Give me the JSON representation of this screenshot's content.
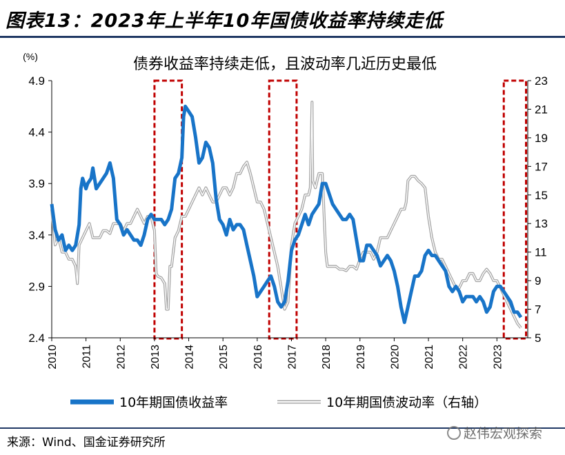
{
  "figure_title": "图表13：2023年上半年10年国债收益率持续走低",
  "source": "来源：Wind、国金证券研究所",
  "watermark": "赵伟宏观探索",
  "colors": {
    "yield": "#1874c8",
    "volatility": "#a6a6a6",
    "highlight": "#c00000",
    "rule": "#1f3864"
  },
  "chart_data": {
    "type": "line",
    "title": "债券收益率持续走低，且波动率几近历史最低",
    "left_axis_unit": "(%)",
    "y_left": {
      "lim": [
        2.4,
        4.9
      ],
      "ticks": [
        "2.4",
        "2.9",
        "3.4",
        "3.9",
        "4.4",
        "4.9"
      ]
    },
    "y_right": {
      "lim": [
        5,
        23
      ],
      "ticks": [
        "5",
        "7",
        "9",
        "11",
        "13",
        "15",
        "17",
        "19",
        "21",
        "23"
      ]
    },
    "x_lim": [
      2010,
      2023.9
    ],
    "x_ticks": [
      "2010",
      "2011",
      "2012",
      "2013",
      "2014",
      "2015",
      "2016",
      "2017",
      "2018",
      "2019",
      "2020",
      "2021",
      "2022",
      "2023"
    ],
    "grid": false,
    "legend_position": "bottom",
    "highlight_ranges": [
      [
        2013.0,
        2013.8
      ],
      [
        2016.35,
        2017.15
      ],
      [
        2023.2,
        2023.85
      ]
    ],
    "series": [
      {
        "name": "10年期国债收益率",
        "axis": "left",
        "points": [
          [
            2010.0,
            3.7
          ],
          [
            2010.1,
            3.45
          ],
          [
            2010.2,
            3.35
          ],
          [
            2010.3,
            3.4
          ],
          [
            2010.4,
            3.25
          ],
          [
            2010.5,
            3.3
          ],
          [
            2010.6,
            3.25
          ],
          [
            2010.7,
            3.3
          ],
          [
            2010.8,
            3.5
          ],
          [
            2010.85,
            3.85
          ],
          [
            2010.9,
            3.95
          ],
          [
            2011.0,
            3.85
          ],
          [
            2011.05,
            3.9
          ],
          [
            2011.15,
            3.95
          ],
          [
            2011.2,
            4.05
          ],
          [
            2011.3,
            3.85
          ],
          [
            2011.4,
            3.9
          ],
          [
            2011.5,
            3.95
          ],
          [
            2011.6,
            4.0
          ],
          [
            2011.7,
            4.1
          ],
          [
            2011.8,
            3.95
          ],
          [
            2011.9,
            3.55
          ],
          [
            2012.0,
            3.5
          ],
          [
            2012.1,
            3.4
          ],
          [
            2012.2,
            3.45
          ],
          [
            2012.3,
            3.4
          ],
          [
            2012.4,
            3.35
          ],
          [
            2012.5,
            3.35
          ],
          [
            2012.6,
            3.3
          ],
          [
            2012.7,
            3.4
          ],
          [
            2012.8,
            3.55
          ],
          [
            2012.9,
            3.6
          ],
          [
            2013.0,
            3.55
          ],
          [
            2013.2,
            3.55
          ],
          [
            2013.3,
            3.5
          ],
          [
            2013.4,
            3.55
          ],
          [
            2013.5,
            3.65
          ],
          [
            2013.6,
            3.95
          ],
          [
            2013.7,
            4.0
          ],
          [
            2013.8,
            4.15
          ],
          [
            2013.85,
            4.55
          ],
          [
            2013.9,
            4.65
          ],
          [
            2014.0,
            4.6
          ],
          [
            2014.1,
            4.55
          ],
          [
            2014.2,
            4.35
          ],
          [
            2014.3,
            4.1
          ],
          [
            2014.4,
            4.15
          ],
          [
            2014.5,
            4.3
          ],
          [
            2014.6,
            4.25
          ],
          [
            2014.7,
            4.1
          ],
          [
            2014.8,
            3.75
          ],
          [
            2014.9,
            3.55
          ],
          [
            2015.0,
            3.5
          ],
          [
            2015.1,
            3.4
          ],
          [
            2015.2,
            3.55
          ],
          [
            2015.3,
            3.45
          ],
          [
            2015.4,
            3.5
          ],
          [
            2015.5,
            3.5
          ],
          [
            2015.6,
            3.45
          ],
          [
            2015.7,
            3.3
          ],
          [
            2015.8,
            3.15
          ],
          [
            2015.9,
            3.0
          ],
          [
            2016.0,
            2.8
          ],
          [
            2016.1,
            2.85
          ],
          [
            2016.2,
            2.9
          ],
          [
            2016.3,
            2.95
          ],
          [
            2016.4,
            3.0
          ],
          [
            2016.5,
            2.9
          ],
          [
            2016.6,
            2.75
          ],
          [
            2016.7,
            2.7
          ],
          [
            2016.8,
            2.75
          ],
          [
            2016.9,
            2.95
          ],
          [
            2017.0,
            3.25
          ],
          [
            2017.1,
            3.35
          ],
          [
            2017.2,
            3.4
          ],
          [
            2017.3,
            3.5
          ],
          [
            2017.4,
            3.6
          ],
          [
            2017.5,
            3.5
          ],
          [
            2017.6,
            3.6
          ],
          [
            2017.7,
            3.65
          ],
          [
            2017.8,
            3.7
          ],
          [
            2017.9,
            3.9
          ],
          [
            2018.0,
            3.9
          ],
          [
            2018.1,
            3.8
          ],
          [
            2018.2,
            3.7
          ],
          [
            2018.3,
            3.65
          ],
          [
            2018.4,
            3.6
          ],
          [
            2018.5,
            3.55
          ],
          [
            2018.6,
            3.55
          ],
          [
            2018.7,
            3.6
          ],
          [
            2018.8,
            3.55
          ],
          [
            2018.9,
            3.35
          ],
          [
            2019.0,
            3.15
          ],
          [
            2019.1,
            3.15
          ],
          [
            2019.2,
            3.3
          ],
          [
            2019.3,
            3.3
          ],
          [
            2019.4,
            3.25
          ],
          [
            2019.5,
            3.2
          ],
          [
            2019.6,
            3.1
          ],
          [
            2019.7,
            3.15
          ],
          [
            2019.8,
            3.2
          ],
          [
            2019.9,
            3.15
          ],
          [
            2020.0,
            3.05
          ],
          [
            2020.1,
            2.9
          ],
          [
            2020.2,
            2.7
          ],
          [
            2020.3,
            2.55
          ],
          [
            2020.4,
            2.7
          ],
          [
            2020.5,
            2.85
          ],
          [
            2020.6,
            3.0
          ],
          [
            2020.7,
            3.0
          ],
          [
            2020.8,
            3.05
          ],
          [
            2020.9,
            3.2
          ],
          [
            2021.0,
            3.25
          ],
          [
            2021.1,
            3.2
          ],
          [
            2021.2,
            3.2
          ],
          [
            2021.3,
            3.15
          ],
          [
            2021.4,
            3.1
          ],
          [
            2021.5,
            3.05
          ],
          [
            2021.6,
            2.9
          ],
          [
            2021.7,
            2.85
          ],
          [
            2021.8,
            2.9
          ],
          [
            2021.9,
            2.85
          ],
          [
            2022.0,
            2.75
          ],
          [
            2022.1,
            2.8
          ],
          [
            2022.2,
            2.8
          ],
          [
            2022.3,
            2.8
          ],
          [
            2022.4,
            2.75
          ],
          [
            2022.5,
            2.8
          ],
          [
            2022.6,
            2.75
          ],
          [
            2022.7,
            2.65
          ],
          [
            2022.8,
            2.7
          ],
          [
            2022.9,
            2.85
          ],
          [
            2023.0,
            2.9
          ],
          [
            2023.1,
            2.9
          ],
          [
            2023.2,
            2.85
          ],
          [
            2023.3,
            2.8
          ],
          [
            2023.4,
            2.75
          ],
          [
            2023.5,
            2.65
          ],
          [
            2023.6,
            2.65
          ],
          [
            2023.7,
            2.6
          ]
        ]
      },
      {
        "name": "10年期国债波动率（右轴）",
        "axis": "right",
        "points": [
          [
            2010.0,
            14.0
          ],
          [
            2010.1,
            11.5
          ],
          [
            2010.2,
            12.0
          ],
          [
            2010.3,
            11.0
          ],
          [
            2010.4,
            11.0
          ],
          [
            2010.5,
            10.5
          ],
          [
            2010.6,
            10.5
          ],
          [
            2010.7,
            10.0
          ],
          [
            2010.75,
            8.8
          ],
          [
            2010.8,
            11.5
          ],
          [
            2010.9,
            12.0
          ],
          [
            2011.0,
            12.5
          ],
          [
            2011.1,
            13.0
          ],
          [
            2011.2,
            12.0
          ],
          [
            2011.3,
            12.0
          ],
          [
            2011.4,
            12.0
          ],
          [
            2011.5,
            12.5
          ],
          [
            2011.6,
            12.5
          ],
          [
            2011.7,
            12.3
          ],
          [
            2011.8,
            13.0
          ],
          [
            2011.9,
            13.0
          ],
          [
            2012.0,
            13.0
          ],
          [
            2012.1,
            12.5
          ],
          [
            2012.2,
            13.0
          ],
          [
            2012.3,
            13.0
          ],
          [
            2012.4,
            13.5
          ],
          [
            2012.5,
            14.0
          ],
          [
            2012.6,
            13.5
          ],
          [
            2012.7,
            13.0
          ],
          [
            2012.8,
            13.5
          ],
          [
            2012.9,
            13.5
          ],
          [
            2013.0,
            12.5
          ],
          [
            2013.05,
            9.5
          ],
          [
            2013.1,
            9.3
          ],
          [
            2013.2,
            9.2
          ],
          [
            2013.3,
            8.8
          ],
          [
            2013.35,
            7.0
          ],
          [
            2013.4,
            7.0
          ],
          [
            2013.45,
            10.0
          ],
          [
            2013.5,
            10.0
          ],
          [
            2013.6,
            12.0
          ],
          [
            2013.7,
            12.5
          ],
          [
            2013.8,
            13.5
          ],
          [
            2013.9,
            13.5
          ],
          [
            2014.0,
            14.0
          ],
          [
            2014.1,
            14.5
          ],
          [
            2014.2,
            15.0
          ],
          [
            2014.3,
            15.5
          ],
          [
            2014.4,
            15.0
          ],
          [
            2014.5,
            15.5
          ],
          [
            2014.6,
            15.0
          ],
          [
            2014.7,
            14.5
          ],
          [
            2014.8,
            14.5
          ],
          [
            2014.9,
            15.0
          ],
          [
            2015.0,
            15.5
          ],
          [
            2015.1,
            15.5
          ],
          [
            2015.2,
            15.0
          ],
          [
            2015.3,
            15.5
          ],
          [
            2015.4,
            16.5
          ],
          [
            2015.5,
            16.5
          ],
          [
            2015.6,
            17.0
          ],
          [
            2015.7,
            17.3
          ],
          [
            2015.8,
            16.5
          ],
          [
            2015.9,
            15.5
          ],
          [
            2016.0,
            14.5
          ],
          [
            2016.1,
            14.5
          ],
          [
            2016.2,
            14.0
          ],
          [
            2016.3,
            13.0
          ],
          [
            2016.4,
            12.0
          ],
          [
            2016.5,
            11.0
          ],
          [
            2016.6,
            10.0
          ],
          [
            2016.7,
            8.5
          ],
          [
            2016.8,
            7.0
          ],
          [
            2016.9,
            7.5
          ],
          [
            2017.0,
            11.5
          ],
          [
            2017.1,
            13.0
          ],
          [
            2017.2,
            13.5
          ],
          [
            2017.3,
            14.0
          ],
          [
            2017.4,
            15.0
          ],
          [
            2017.5,
            15.0
          ],
          [
            2017.55,
            15.5
          ],
          [
            2017.6,
            21.5
          ],
          [
            2017.62,
            16.0
          ],
          [
            2017.7,
            15.5
          ],
          [
            2017.8,
            16.5
          ],
          [
            2017.9,
            16.5
          ],
          [
            2018.0,
            11.0
          ],
          [
            2018.05,
            10.0
          ],
          [
            2018.1,
            10.0
          ],
          [
            2018.2,
            10.0
          ],
          [
            2018.3,
            10.0
          ],
          [
            2018.4,
            9.8
          ],
          [
            2018.5,
            9.8
          ],
          [
            2018.6,
            9.7
          ],
          [
            2018.7,
            10.0
          ],
          [
            2018.8,
            10.0
          ],
          [
            2018.9,
            9.8
          ],
          [
            2019.0,
            10.5
          ],
          [
            2019.1,
            11.0
          ],
          [
            2019.2,
            11.0
          ],
          [
            2019.3,
            11.0
          ],
          [
            2019.4,
            10.5
          ],
          [
            2019.5,
            11.0
          ],
          [
            2019.6,
            12.0
          ],
          [
            2019.7,
            12.0
          ],
          [
            2019.8,
            12.0
          ],
          [
            2019.9,
            12.5
          ],
          [
            2020.0,
            13.0
          ],
          [
            2020.1,
            13.5
          ],
          [
            2020.2,
            14.0
          ],
          [
            2020.3,
            14.0
          ],
          [
            2020.35,
            14.5
          ],
          [
            2020.4,
            16.0
          ],
          [
            2020.5,
            16.3
          ],
          [
            2020.6,
            16.3
          ],
          [
            2020.7,
            16.0
          ],
          [
            2020.8,
            15.8
          ],
          [
            2020.9,
            15.5
          ],
          [
            2021.0,
            13.5
          ],
          [
            2021.1,
            12.0
          ],
          [
            2021.2,
            11.0
          ],
          [
            2021.3,
            10.5
          ],
          [
            2021.4,
            10.5
          ],
          [
            2021.5,
            10.0
          ],
          [
            2021.6,
            9.5
          ],
          [
            2021.7,
            9.0
          ],
          [
            2021.8,
            8.5
          ],
          [
            2021.9,
            8.5
          ],
          [
            2022.0,
            9.0
          ],
          [
            2022.1,
            9.0
          ],
          [
            2022.2,
            9.5
          ],
          [
            2022.3,
            9.5
          ],
          [
            2022.4,
            9.0
          ],
          [
            2022.5,
            9.0
          ],
          [
            2022.6,
            9.5
          ],
          [
            2022.7,
            9.8
          ],
          [
            2022.8,
            9.5
          ],
          [
            2022.9,
            9.0
          ],
          [
            2023.0,
            9.0
          ],
          [
            2023.1,
            8.5
          ],
          [
            2023.2,
            8.0
          ],
          [
            2023.3,
            7.5
          ],
          [
            2023.4,
            7.0
          ],
          [
            2023.5,
            6.5
          ],
          [
            2023.6,
            6.0
          ],
          [
            2023.7,
            5.7
          ]
        ]
      }
    ]
  }
}
